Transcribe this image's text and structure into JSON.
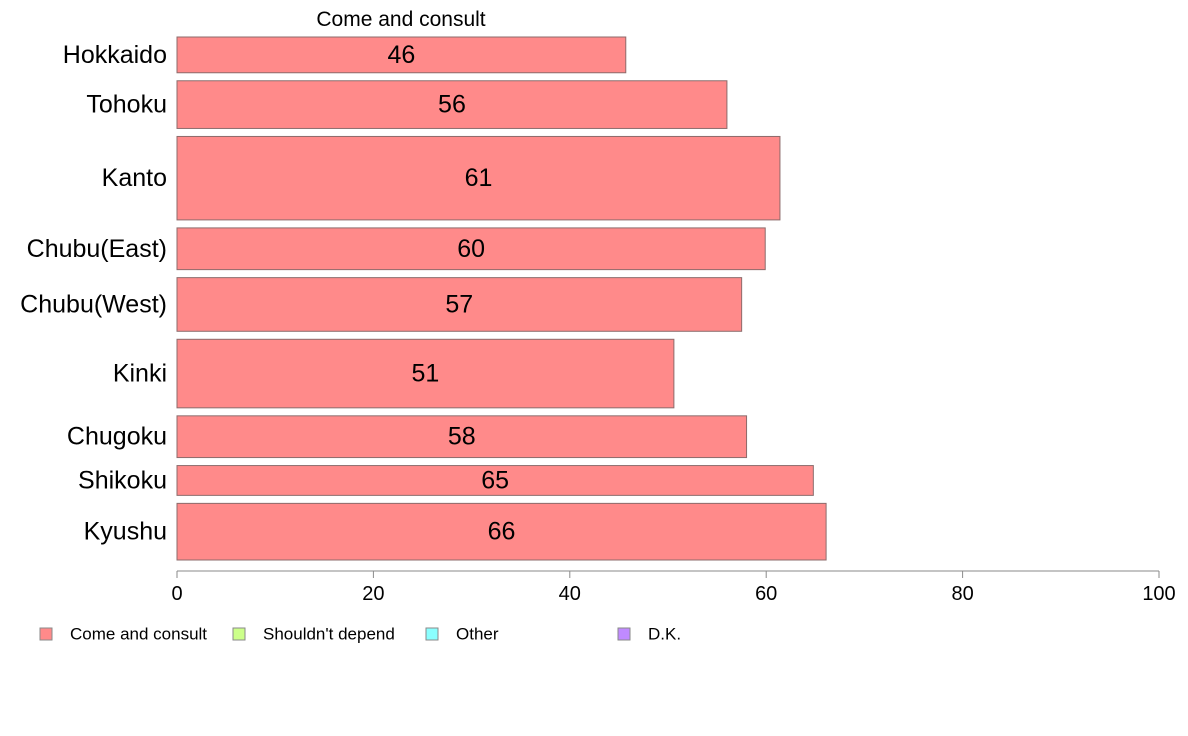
{
  "chart_data": {
    "type": "bar",
    "orientation": "horizontal",
    "stacked": true,
    "title": "Come and consult",
    "xlabel": "",
    "ylabel": "",
    "xlim": [
      0,
      100
    ],
    "x_ticks": [
      0,
      20,
      40,
      60,
      80,
      100
    ],
    "grid": false,
    "categories": [
      "Hokkaido",
      "Tohoku",
      "Kanto",
      "Chubu(East)",
      "Chubu(West)",
      "Kinki",
      "Chugoku",
      "Shikoku",
      "Kyushu"
    ],
    "category_weights": [
      0.6,
      0.8,
      1.4,
      0.7,
      0.9,
      1.15,
      0.7,
      0.5,
      0.95
    ],
    "series": [
      {
        "name": "Come and consult",
        "color": "#ff8a8a",
        "values": [
          45.7,
          56.0,
          61.4,
          59.9,
          57.5,
          50.6,
          58.0,
          64.8,
          66.1
        ],
        "labels": [
          "46",
          "56",
          "61",
          "60",
          "57",
          "51",
          "58",
          "65",
          "66"
        ]
      }
    ],
    "legend_position": "bottom-left",
    "legend": [
      {
        "name": "Come and consult",
        "color": "#ff8a8a"
      },
      {
        "name": "Shouldn't depend",
        "color": "#ccff8a"
      },
      {
        "name": "Other",
        "color": "#8affff"
      },
      {
        "name": "D.K.",
        "color": "#c08aff"
      }
    ]
  }
}
